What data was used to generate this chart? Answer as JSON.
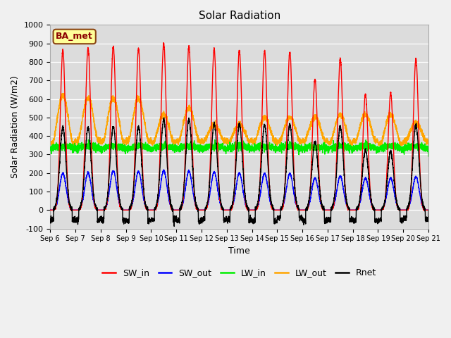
{
  "title": "Solar Radiation",
  "ylabel": "Solar Radiation (W/m2)",
  "xlabel": "Time",
  "ylim": [
    -100,
    1000
  ],
  "annotation": "BA_met",
  "bg_color": "#dcdcdc",
  "series": {
    "SW_in": {
      "color": "#ff0000",
      "lw": 1.0
    },
    "SW_out": {
      "color": "#0000ff",
      "lw": 1.0
    },
    "LW_in": {
      "color": "#00ee00",
      "lw": 1.0
    },
    "LW_out": {
      "color": "#ffa500",
      "lw": 1.0
    },
    "Rnet": {
      "color": "#000000",
      "lw": 1.0
    }
  },
  "xtick_labels": [
    "Sep 6",
    "Sep 7",
    "Sep 8",
    "Sep 9",
    "Sep 9",
    "Sep 10",
    "Sep 11",
    "Sep 12",
    "Sep 13",
    "Sep 14",
    "Sep 15",
    "Sep 16",
    "Sep 17",
    "Sep 18",
    "Sep 19",
    "Sep 20",
    "Sep 21"
  ],
  "ytick_values": [
    -100,
    0,
    100,
    200,
    300,
    400,
    500,
    600,
    700,
    800,
    900,
    1000
  ],
  "ytick_labels": [
    "-100",
    "0",
    "100",
    "200",
    "300",
    "400",
    "500",
    "600",
    "700",
    "800",
    "900",
    "1000"
  ],
  "sw_in_peaks": [
    863,
    876,
    884,
    871,
    898,
    884,
    868,
    863,
    857,
    851,
    704,
    816,
    625,
    630,
    816
  ],
  "sw_out_peaks": [
    198,
    202,
    213,
    208,
    212,
    210,
    205,
    200,
    198,
    197,
    172,
    182,
    172,
    172,
    180
  ],
  "lw_out_peaks": [
    617,
    604,
    604,
    602,
    515,
    550,
    463,
    463,
    500,
    502,
    503,
    515,
    517,
    516,
    472
  ],
  "rnet_peaks": [
    448,
    446,
    452,
    450,
    490,
    490,
    465,
    465,
    460,
    463,
    370,
    450,
    325,
    316,
    460
  ]
}
